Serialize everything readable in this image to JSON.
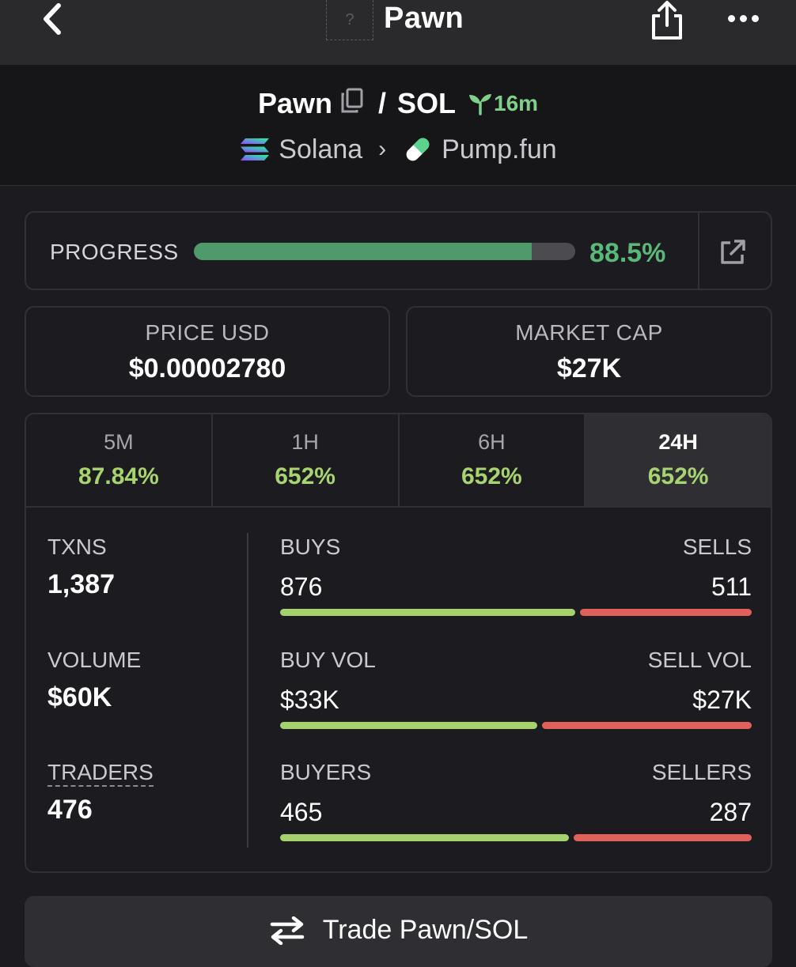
{
  "nav": {
    "title": "Pawn",
    "token_placeholder": "?"
  },
  "pair": {
    "base": "Pawn",
    "separator": "/",
    "quote": "SOL",
    "age": "16m"
  },
  "chain": {
    "name": "Solana",
    "dex": "Pump.fun"
  },
  "progress": {
    "label": "PROGRESS",
    "value_text": "88.5%",
    "fraction": 0.885
  },
  "price": {
    "label": "PRICE USD",
    "value": "$0.00002780"
  },
  "market_cap": {
    "label": "MARKET CAP",
    "value": "$27K"
  },
  "timeframes": [
    {
      "label": "5M",
      "change": "87.84%"
    },
    {
      "label": "1H",
      "change": "652%"
    },
    {
      "label": "6H",
      "change": "652%"
    },
    {
      "label": "24H",
      "change": "652%",
      "active": true
    }
  ],
  "stats": {
    "txns": {
      "label": "TXNS",
      "value": "1,387"
    },
    "volume": {
      "label": "VOLUME",
      "value": "$60K"
    },
    "traders": {
      "label": "TRADERS",
      "value": "476"
    }
  },
  "ratios": {
    "buys": {
      "left_label": "BUYS",
      "right_label": "SELLS",
      "left_value": "876",
      "right_value": "511",
      "left": 876,
      "right": 511
    },
    "vol": {
      "left_label": "BUY VOL",
      "right_label": "SELL VOL",
      "left_value": "$33K",
      "right_value": "$27K",
      "left": 33,
      "right": 27
    },
    "makers": {
      "left_label": "BUYERS",
      "right_label": "SELLERS",
      "left_value": "465",
      "right_value": "287",
      "left": 465,
      "right": 287
    }
  },
  "trade_button": {
    "label": "Trade Pawn/SOL"
  },
  "colors": {
    "positive": "#a8d46f",
    "buy_bar": "#a5d26d",
    "sell_bar": "#e0605a",
    "progress_fill": "#4e9a6b",
    "age": "#7fd18a"
  },
  "icons": [
    "back-chevron-icon",
    "share-icon",
    "more-icon",
    "copy-icon",
    "sprout-icon",
    "solana-logo-icon",
    "pill-icon",
    "external-link-icon",
    "swap-arrows-icon"
  ]
}
